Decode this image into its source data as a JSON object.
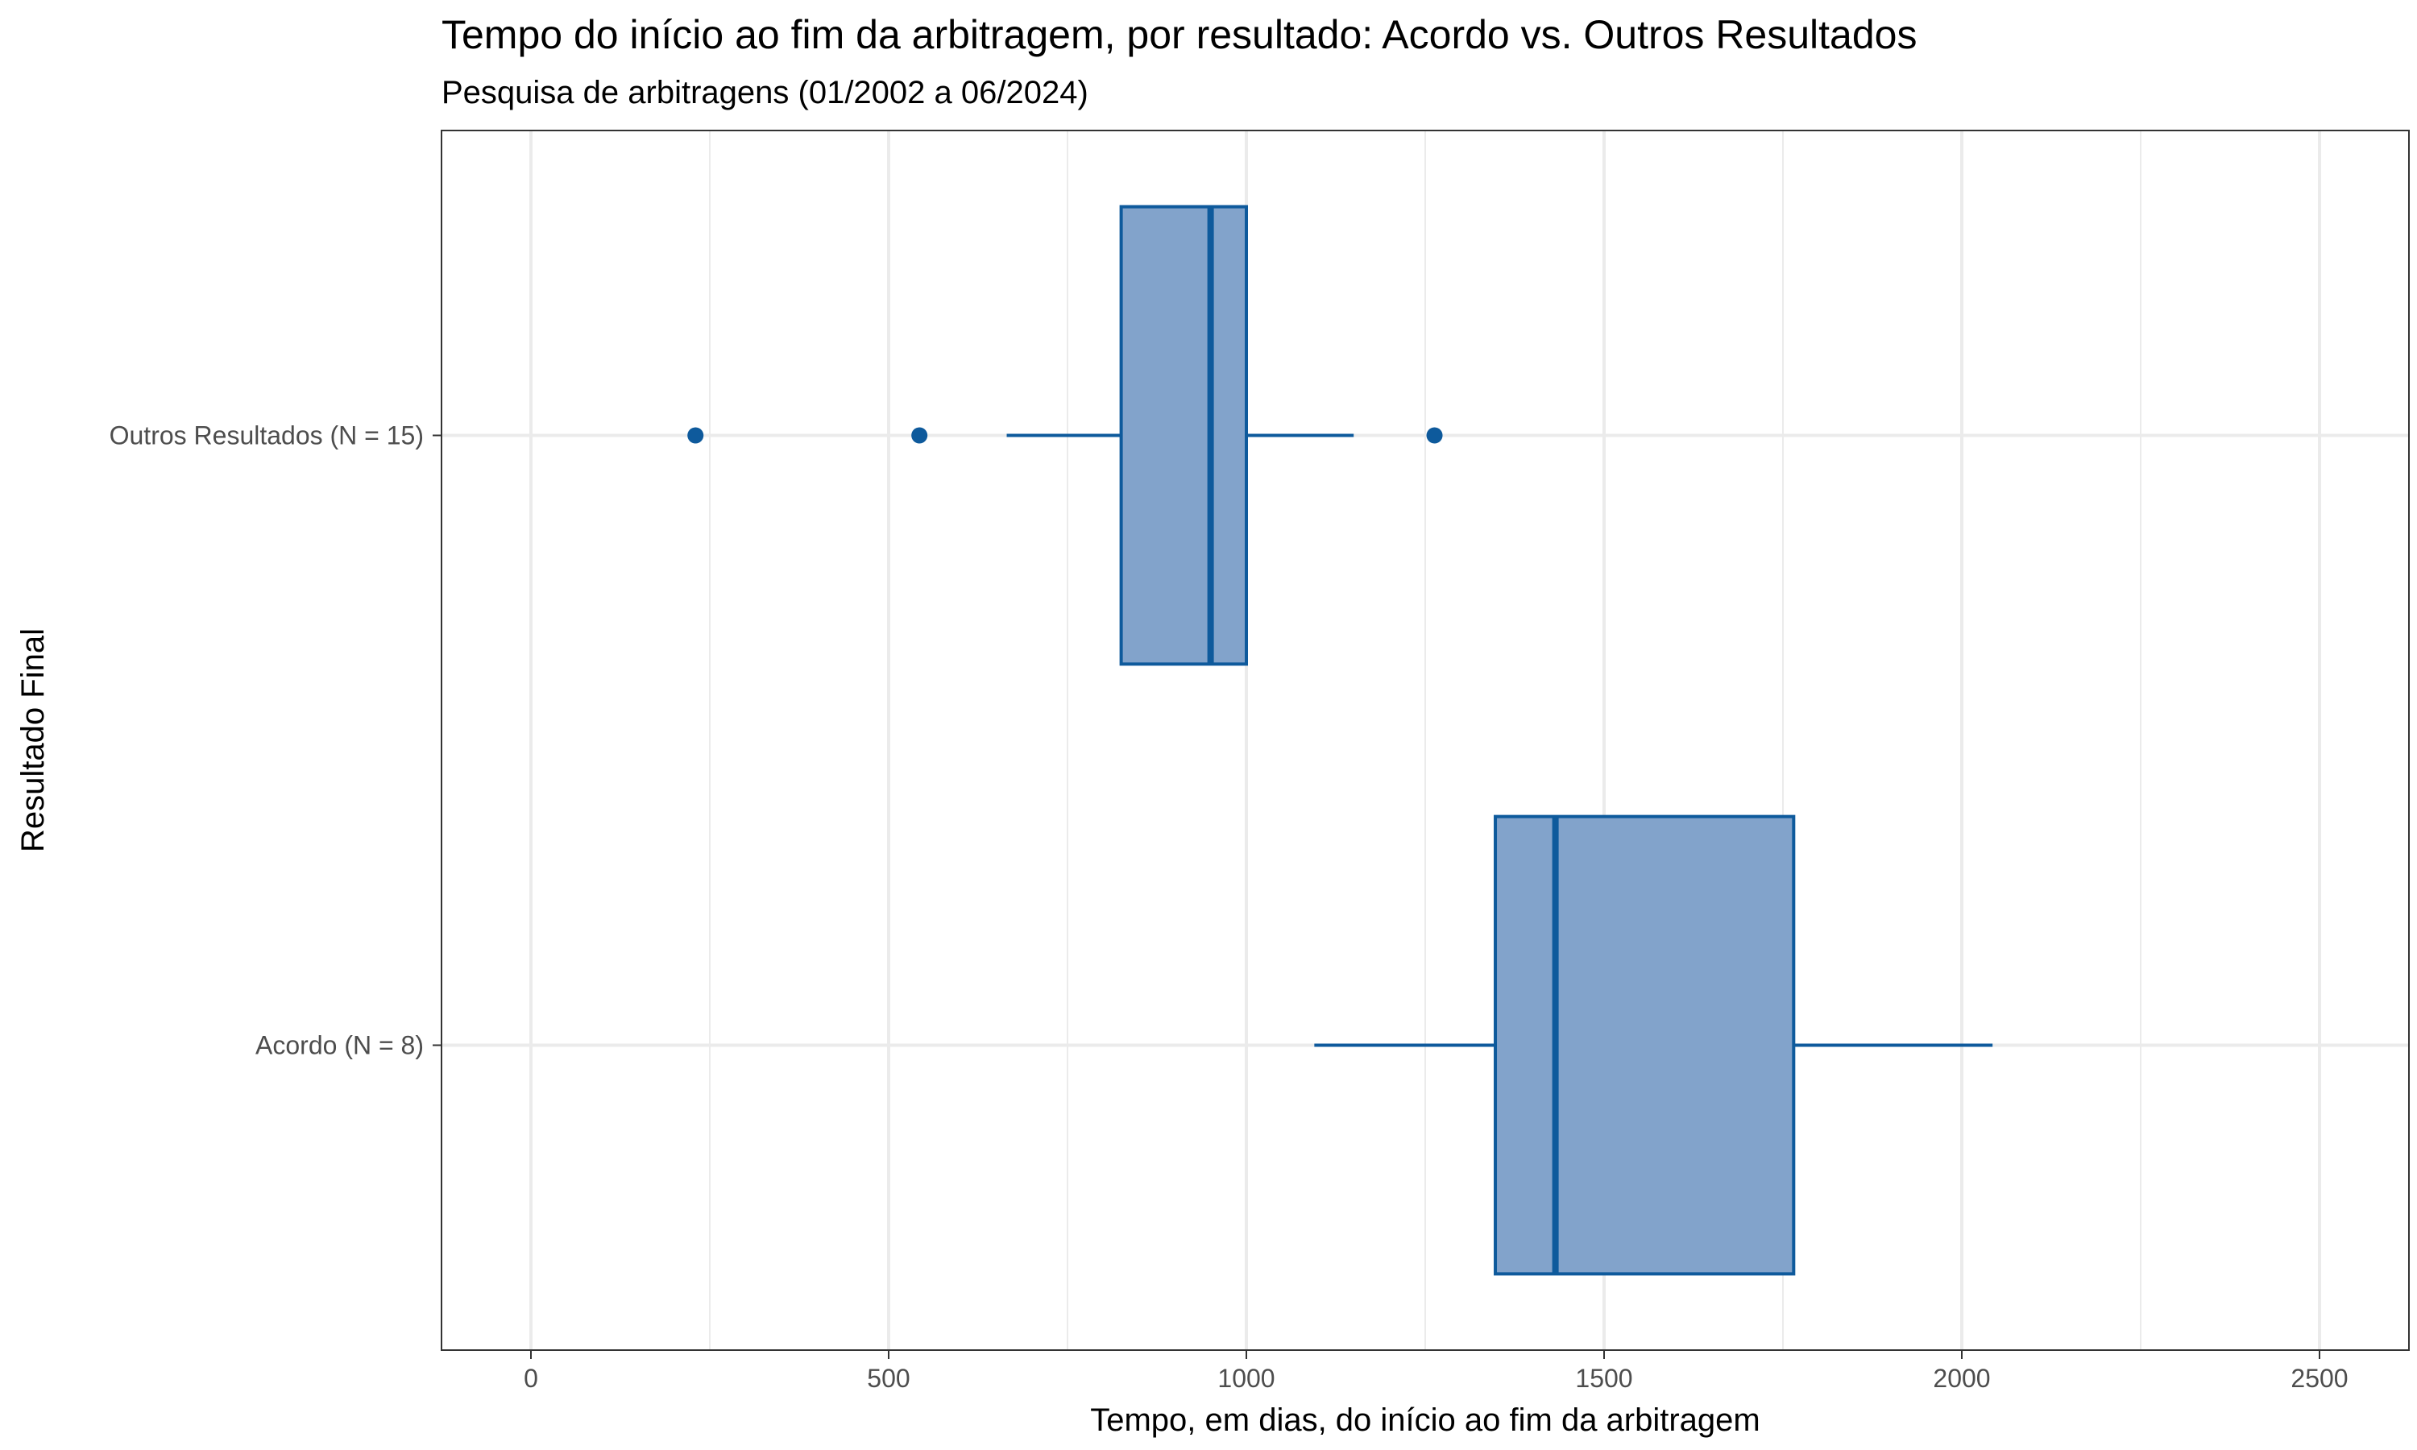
{
  "chart_data": {
    "type": "boxplot",
    "orientation": "horizontal",
    "title": "Tempo do início ao fim da arbitragem, por resultado: Acordo vs. Outros Resultados",
    "subtitle": "Pesquisa de arbitragens (01/2002 a 06/2024)",
    "xlabel": "Tempo, em dias, do início ao fim da arbitragem",
    "ylabel": "Resultado Final",
    "xlim": [
      -125,
      2625
    ],
    "x_ticks": [
      0,
      500,
      1000,
      1500,
      2000,
      2500
    ],
    "grid": true,
    "legend": "none",
    "colors": {
      "fill": "#82a3cb",
      "stroke": "#0e5a9c",
      "grid": "#ebebeb",
      "panel_border": "#333333"
    },
    "series": [
      {
        "category": "Acordo (N = 8)",
        "whisker_low": 1095,
        "q1": 1348,
        "median": 1432,
        "q3": 1765,
        "whisker_high": 2043,
        "outliers": []
      },
      {
        "category": "Outros Resultados (N = 15)",
        "whisker_low": 665,
        "q1": 825,
        "median": 950,
        "q3": 1000,
        "whisker_high": 1150,
        "outliers": [
          230,
          543,
          1263
        ]
      }
    ]
  }
}
